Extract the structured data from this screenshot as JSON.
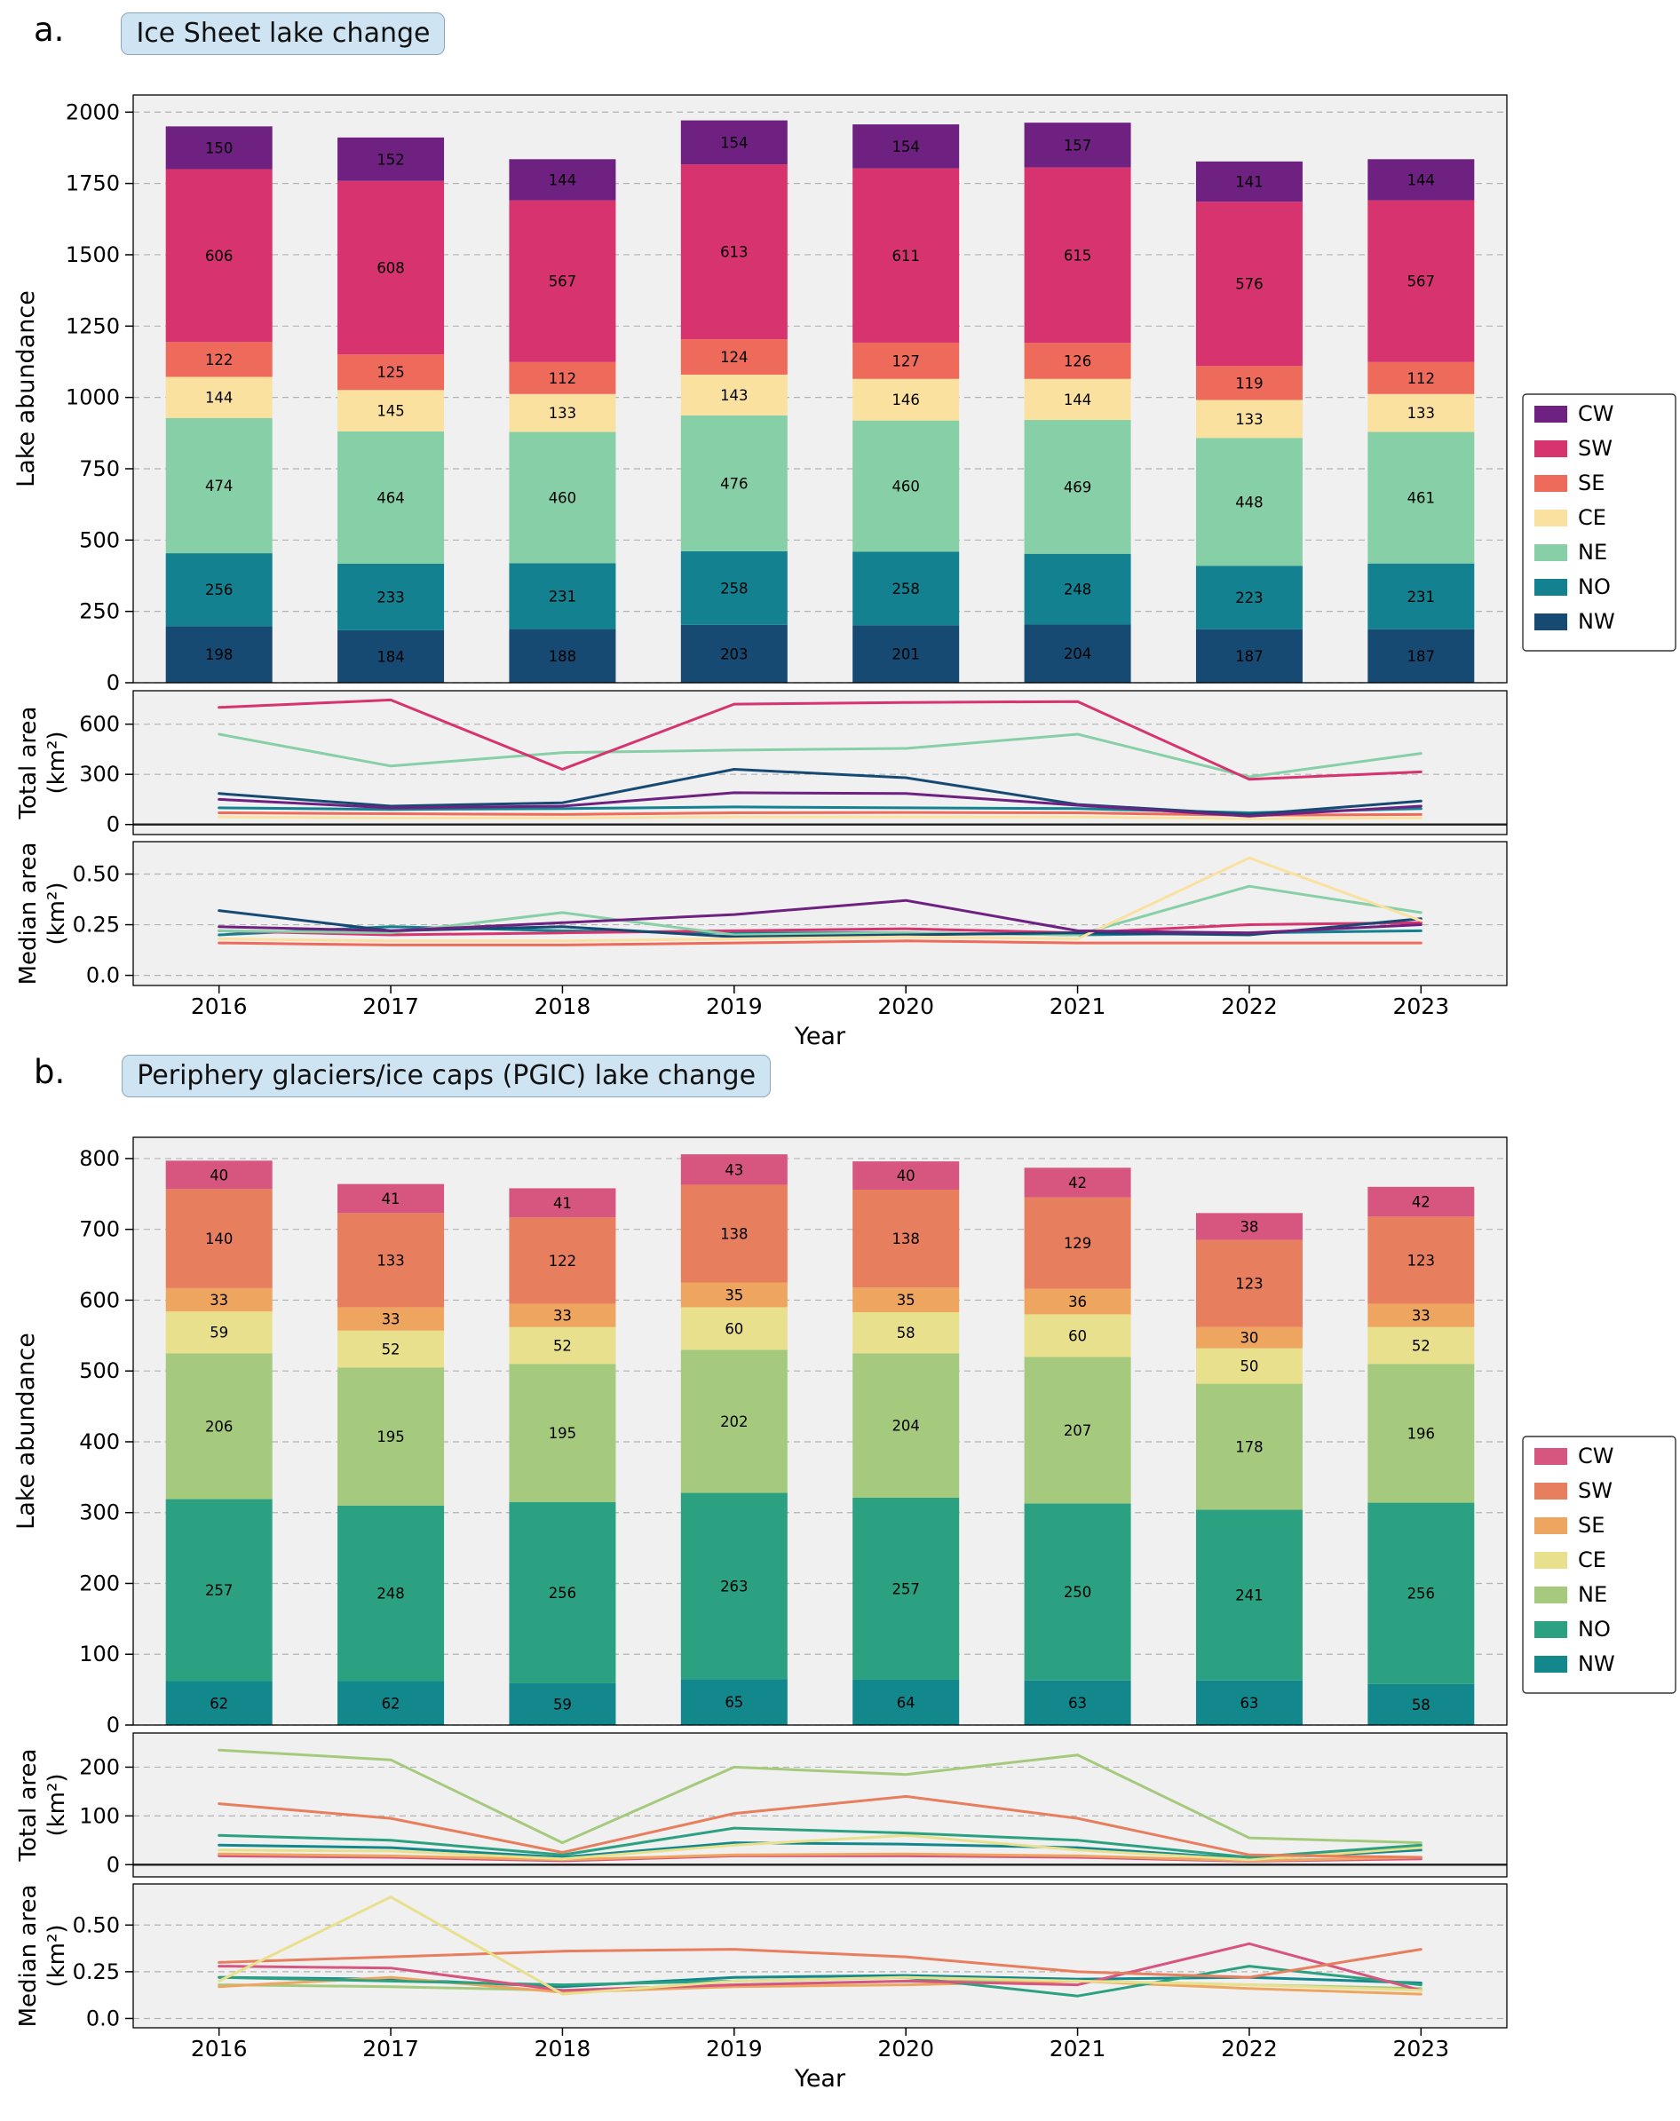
{
  "xlabel": "Year",
  "years": [
    "2016",
    "2017",
    "2018",
    "2019",
    "2020",
    "2021",
    "2022",
    "2023"
  ],
  "legend_order": [
    "CW",
    "SW",
    "SE",
    "CE",
    "NE",
    "NO",
    "NW"
  ],
  "style": {
    "plot_bg": "#f0f0f0",
    "grid_color": "#b3b3b3",
    "title_bg": "#cfe4f2",
    "title_border": "#8ba6bd",
    "zero_line": "#1c1c1c"
  },
  "panels": [
    {
      "id": "a",
      "label": "a.",
      "title": "Ice Sheet lake change",
      "bar_ylabel": "Lake abundance",
      "total_ylabel": [
        "Total area",
        "(km²)"
      ],
      "median_ylabel": [
        "Median area",
        "(km²)"
      ],
      "colors": {
        "CW": "#6e2180",
        "SW": "#d6336f",
        "SE": "#ee6a5b",
        "CE": "#fae1a0",
        "NE": "#87cfa6",
        "NO": "#13818f",
        "NW": "#174a72"
      },
      "chart_data": [
        {
          "type": "bar",
          "name": "lake-abundance",
          "stacked": true,
          "ylabel": "Lake abundance",
          "categories": [
            "2016",
            "2017",
            "2018",
            "2019",
            "2020",
            "2021",
            "2022",
            "2023"
          ],
          "ylim": [
            0,
            2060
          ],
          "yticks": [
            0,
            250,
            500,
            750,
            1000,
            1250,
            1500,
            1750,
            2000
          ],
          "series": [
            {
              "name": "NW",
              "values": [
                198,
                184,
                188,
                203,
                201,
                204,
                187,
                187
              ]
            },
            {
              "name": "NO",
              "values": [
                256,
                233,
                231,
                258,
                258,
                248,
                223,
                231
              ]
            },
            {
              "name": "NE",
              "values": [
                474,
                464,
                460,
                476,
                460,
                469,
                448,
                461
              ]
            },
            {
              "name": "CE",
              "values": [
                144,
                145,
                133,
                143,
                146,
                144,
                133,
                133
              ]
            },
            {
              "name": "SE",
              "values": [
                122,
                125,
                112,
                124,
                127,
                126,
                119,
                112
              ]
            },
            {
              "name": "SW",
              "values": [
                606,
                608,
                567,
                613,
                611,
                615,
                576,
                567
              ]
            },
            {
              "name": "CW",
              "values": [
                150,
                152,
                144,
                154,
                154,
                157,
                141,
                144
              ]
            }
          ]
        },
        {
          "type": "line",
          "name": "total-area",
          "ylabel": "Total area (km²)",
          "x": [
            "2016",
            "2017",
            "2018",
            "2019",
            "2020",
            "2021",
            "2022",
            "2023"
          ],
          "ylim": [
            -60,
            800
          ],
          "yticks": [
            0,
            300,
            600
          ],
          "zero_line": true,
          "draw_order": [
            "CE",
            "SE",
            "NO",
            "NW",
            "CW",
            "NE",
            "SW"
          ],
          "series": [
            {
              "name": "CW",
              "values": [
                150,
                100,
                110,
                190,
                185,
                115,
                50,
                110
              ]
            },
            {
              "name": "SW",
              "values": [
                700,
                745,
                330,
                720,
                730,
                735,
                270,
                315
              ]
            },
            {
              "name": "SE",
              "values": [
                70,
                65,
                60,
                70,
                72,
                70,
                55,
                60
              ]
            },
            {
              "name": "CE",
              "values": [
                45,
                40,
                40,
                45,
                45,
                45,
                35,
                40
              ]
            },
            {
              "name": "NE",
              "values": [
                540,
                350,
                430,
                445,
                455,
                540,
                285,
                425
              ]
            },
            {
              "name": "NO",
              "values": [
                100,
                90,
                95,
                105,
                100,
                95,
                70,
                95
              ]
            },
            {
              "name": "NW",
              "values": [
                185,
                110,
                130,
                330,
                280,
                120,
                60,
                140
              ]
            }
          ]
        },
        {
          "type": "line",
          "name": "median-area",
          "ylabel": "Median area (km²)",
          "x": [
            "2016",
            "2017",
            "2018",
            "2019",
            "2020",
            "2021",
            "2022",
            "2023"
          ],
          "ylim": [
            -0.05,
            0.66
          ],
          "yticks": [
            0,
            0.25,
            0.5
          ],
          "ytick_labels": [
            "0.0",
            "0.25",
            "0.50"
          ],
          "draw_order": [
            "SE",
            "NO",
            "SW",
            "NE",
            "NW",
            "CE",
            "CW"
          ],
          "series": [
            {
              "name": "CW",
              "values": [
                0.24,
                0.22,
                0.26,
                0.3,
                0.37,
                0.22,
                0.21,
                0.25
              ]
            },
            {
              "name": "SW",
              "values": [
                0.22,
                0.2,
                0.21,
                0.22,
                0.23,
                0.21,
                0.25,
                0.26
              ]
            },
            {
              "name": "SE",
              "values": [
                0.16,
                0.15,
                0.15,
                0.16,
                0.17,
                0.16,
                0.16,
                0.16
              ]
            },
            {
              "name": "CE",
              "values": [
                0.18,
                0.17,
                0.17,
                0.18,
                0.19,
                0.18,
                0.58,
                0.27
              ]
            },
            {
              "name": "NE",
              "values": [
                0.22,
                0.21,
                0.31,
                0.2,
                0.21,
                0.2,
                0.44,
                0.31
              ]
            },
            {
              "name": "NO",
              "values": [
                0.2,
                0.24,
                0.22,
                0.21,
                0.21,
                0.2,
                0.21,
                0.22
              ]
            },
            {
              "name": "NW",
              "values": [
                0.32,
                0.22,
                0.24,
                0.19,
                0.2,
                0.21,
                0.2,
                0.28
              ]
            }
          ]
        }
      ]
    },
    {
      "id": "b",
      "label": "b.",
      "title": "Periphery glaciers/ice caps (PGIC) lake change",
      "bar_ylabel": "Lake abundance",
      "total_ylabel": [
        "Total area",
        "(km²)"
      ],
      "median_ylabel": [
        "Median area",
        "(km²)"
      ],
      "colors": {
        "CW": "#d65680",
        "SW": "#e77e5d",
        "SE": "#eea560",
        "CE": "#e9e08d",
        "NE": "#a6ca7d",
        "NO": "#2ba181",
        "NW": "#12888d"
      },
      "chart_data": [
        {
          "type": "bar",
          "name": "lake-abundance",
          "stacked": true,
          "ylabel": "Lake abundance",
          "categories": [
            "2016",
            "2017",
            "2018",
            "2019",
            "2020",
            "2021",
            "2022",
            "2023"
          ],
          "ylim": [
            0,
            830
          ],
          "yticks": [
            0,
            100,
            200,
            300,
            400,
            500,
            600,
            700,
            800
          ],
          "series": [
            {
              "name": "NW",
              "values": [
                62,
                62,
                59,
                65,
                64,
                63,
                63,
                58
              ]
            },
            {
              "name": "NO",
              "values": [
                257,
                248,
                256,
                263,
                257,
                250,
                241,
                256
              ]
            },
            {
              "name": "NE",
              "values": [
                206,
                195,
                195,
                202,
                204,
                207,
                178,
                196
              ]
            },
            {
              "name": "CE",
              "values": [
                59,
                52,
                52,
                60,
                58,
                60,
                50,
                52
              ]
            },
            {
              "name": "SE",
              "values": [
                33,
                33,
                33,
                35,
                35,
                36,
                30,
                33
              ]
            },
            {
              "name": "SW",
              "values": [
                140,
                133,
                122,
                138,
                138,
                129,
                123,
                123
              ]
            },
            {
              "name": "CW",
              "values": [
                40,
                41,
                41,
                43,
                40,
                42,
                38,
                42
              ]
            }
          ]
        },
        {
          "type": "line",
          "name": "total-area",
          "ylabel": "Total area (km²)",
          "x": [
            "2016",
            "2017",
            "2018",
            "2019",
            "2020",
            "2021",
            "2022",
            "2023"
          ],
          "ylim": [
            -25,
            270
          ],
          "yticks": [
            0,
            100,
            200
          ],
          "zero_line": true,
          "draw_order": [
            "CW",
            "SE",
            "NW",
            "CE",
            "NO",
            "SW",
            "NE"
          ],
          "series": [
            {
              "name": "CW",
              "values": [
                18,
                15,
                8,
                18,
                18,
                15,
                7,
                12
              ]
            },
            {
              "name": "SW",
              "values": [
                125,
                95,
                25,
                105,
                140,
                95,
                20,
                15
              ]
            },
            {
              "name": "SE",
              "values": [
                22,
                18,
                10,
                20,
                22,
                18,
                8,
                15
              ]
            },
            {
              "name": "CE",
              "values": [
                30,
                28,
                12,
                40,
                60,
                30,
                10,
                35
              ]
            },
            {
              "name": "NE",
              "values": [
                235,
                215,
                45,
                200,
                185,
                225,
                55,
                45
              ]
            },
            {
              "name": "NO",
              "values": [
                60,
                50,
                20,
                75,
                65,
                50,
                15,
                40
              ]
            },
            {
              "name": "NW",
              "values": [
                40,
                35,
                15,
                45,
                42,
                35,
                12,
                30
              ]
            }
          ]
        },
        {
          "type": "line",
          "name": "median-area",
          "ylabel": "Median area (km²)",
          "x": [
            "2016",
            "2017",
            "2018",
            "2019",
            "2020",
            "2021",
            "2022",
            "2023"
          ],
          "ylim": [
            -0.05,
            0.72
          ],
          "yticks": [
            0,
            0.25,
            0.5
          ],
          "ytick_labels": [
            "0.0",
            "0.25",
            "0.50"
          ],
          "draw_order": [
            "NW",
            "NE",
            "SE",
            "NO",
            "CW",
            "SW",
            "CE"
          ],
          "series": [
            {
              "name": "CW",
              "values": [
                0.28,
                0.27,
                0.15,
                0.18,
                0.2,
                0.18,
                0.4,
                0.15
              ]
            },
            {
              "name": "SW",
              "values": [
                0.3,
                0.33,
                0.36,
                0.37,
                0.33,
                0.25,
                0.22,
                0.37
              ]
            },
            {
              "name": "SE",
              "values": [
                0.17,
                0.22,
                0.14,
                0.17,
                0.18,
                0.2,
                0.16,
                0.13
              ]
            },
            {
              "name": "CE",
              "values": [
                0.2,
                0.65,
                0.13,
                0.2,
                0.22,
                0.2,
                0.18,
                0.15
              ]
            },
            {
              "name": "NE",
              "values": [
                0.18,
                0.17,
                0.15,
                0.18,
                0.2,
                0.2,
                0.18,
                0.16
              ]
            },
            {
              "name": "NO",
              "values": [
                0.22,
                0.2,
                0.18,
                0.2,
                0.22,
                0.12,
                0.28,
                0.18
              ]
            },
            {
              "name": "NW",
              "values": [
                0.22,
                0.21,
                0.17,
                0.22,
                0.23,
                0.21,
                0.22,
                0.19
              ]
            }
          ]
        }
      ]
    }
  ]
}
